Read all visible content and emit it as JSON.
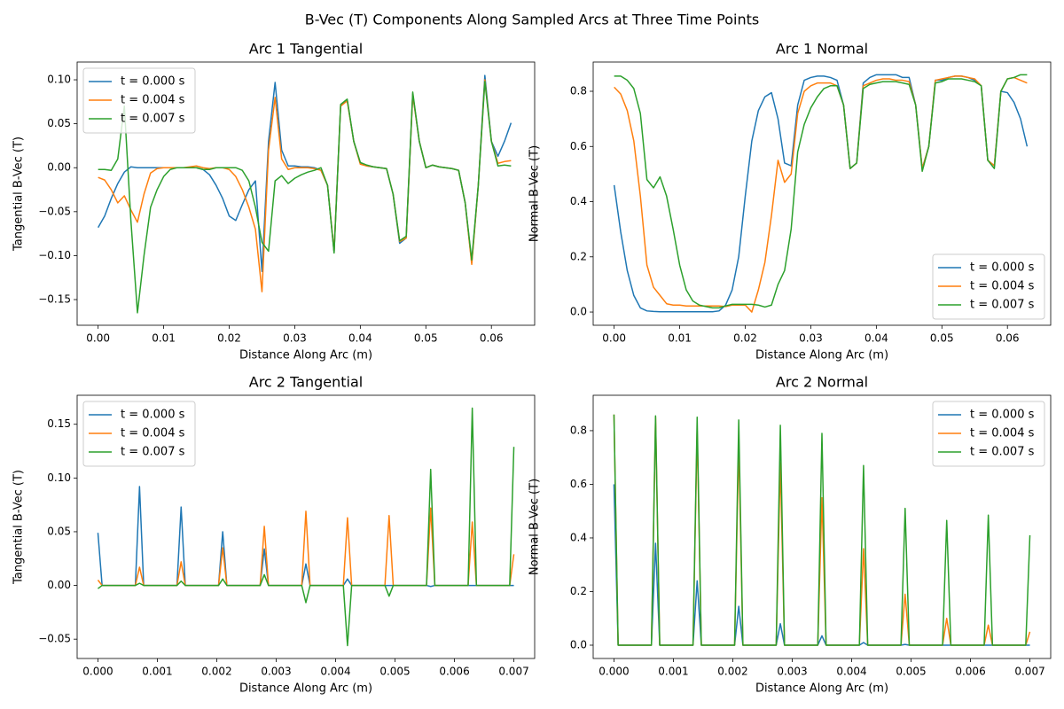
{
  "title": "B-Vec (T) Components Along Sampled Arcs at Three Time Points",
  "chart_data": [
    {
      "type": "line",
      "title": "Arc 1 Tangential",
      "xlabel": "Distance Along Arc (m)",
      "ylabel": "Tangential B-Vec (T)",
      "legend": "upper left",
      "x": [
        0,
        0.001,
        0.002,
        0.003,
        0.004,
        0.005,
        0.006,
        0.007,
        0.008,
        0.009,
        0.01,
        0.011,
        0.012,
        0.013,
        0.014,
        0.015,
        0.016,
        0.017,
        0.018,
        0.019,
        0.02,
        0.021,
        0.022,
        0.023,
        0.024,
        0.025,
        0.026,
        0.027,
        0.028,
        0.029,
        0.03,
        0.031,
        0.032,
        0.033,
        0.034,
        0.035,
        0.036,
        0.037,
        0.038,
        0.039,
        0.04,
        0.041,
        0.042,
        0.043,
        0.044,
        0.045,
        0.046,
        0.047,
        0.048,
        0.049,
        0.05,
        0.051,
        0.052,
        0.053,
        0.054,
        0.055,
        0.056,
        0.057,
        0.058,
        0.059,
        0.06,
        0.061,
        0.062,
        0.063
      ],
      "series": [
        {
          "name": "t = 0.000 s",
          "color": "#1f77b4",
          "values": [
            -0.068,
            -0.055,
            -0.035,
            -0.018,
            -0.005,
            0.001,
            0,
            0,
            0,
            0,
            0,
            0,
            0,
            0,
            0,
            0,
            -0.002,
            -0.008,
            -0.02,
            -0.035,
            -0.055,
            -0.06,
            -0.042,
            -0.025,
            -0.015,
            -0.118,
            0.03,
            0.097,
            0.02,
            0.002,
            0.002,
            0.001,
            0.001,
            0,
            -0.003,
            -0.02,
            -0.096,
            0.07,
            0.077,
            0.03,
            0.005,
            0.002,
            0.001,
            0,
            -0.001,
            -0.03,
            -0.086,
            -0.08,
            0.084,
            0.03,
            0,
            0.003,
            0.001,
            0,
            -0.001,
            -0.003,
            -0.04,
            -0.108,
            -0.02,
            0.105,
            0.03,
            0.013,
            0.03,
            0.051
          ]
        },
        {
          "name": "t = 0.004 s",
          "color": "#ff7f0e",
          "values": [
            -0.011,
            -0.014,
            -0.025,
            -0.04,
            -0.032,
            -0.048,
            -0.062,
            -0.03,
            -0.006,
            -0.001,
            0,
            0,
            0,
            0,
            0.001,
            0.002,
            0,
            -0.001,
            0,
            0,
            -0.002,
            -0.01,
            -0.025,
            -0.045,
            -0.07,
            -0.141,
            0.02,
            0.08,
            0.01,
            -0.002,
            0,
            0,
            0,
            -0.001,
            -0.003,
            -0.02,
            -0.095,
            0.07,
            0.076,
            0.03,
            0.004,
            0.002,
            0.001,
            0,
            -0.001,
            -0.03,
            -0.084,
            -0.08,
            0.083,
            0.03,
            0,
            0.003,
            0.001,
            0,
            -0.001,
            -0.003,
            -0.04,
            -0.11,
            -0.02,
            0.1,
            0.03,
            0.005,
            0.007,
            0.008
          ]
        },
        {
          "name": "t = 0.007 s",
          "color": "#2ca02c",
          "values": [
            -0.002,
            -0.002,
            -0.003,
            0.01,
            0.07,
            -0.06,
            -0.165,
            -0.1,
            -0.045,
            -0.025,
            -0.01,
            -0.002,
            0,
            0,
            0,
            0,
            -0.002,
            -0.002,
            0,
            0,
            0,
            0,
            -0.003,
            -0.015,
            -0.045,
            -0.085,
            -0.095,
            -0.015,
            -0.009,
            -0.018,
            -0.012,
            -0.008,
            -0.005,
            -0.003,
            0,
            -0.02,
            -0.097,
            0.072,
            0.078,
            0.03,
            0.006,
            0.003,
            0.001,
            0,
            -0.001,
            -0.03,
            -0.083,
            -0.078,
            0.086,
            0.03,
            0,
            0.003,
            0.001,
            0,
            -0.001,
            -0.003,
            -0.04,
            -0.105,
            -0.02,
            0.098,
            0.03,
            0.002,
            0.003,
            0.002
          ]
        }
      ],
      "xlim": [
        -0.0032,
        0.0666
      ],
      "ylim": [
        -0.1792,
        0.1202
      ],
      "xticks": [
        {
          "value": 0,
          "label": "0.00"
        },
        {
          "value": 0.01,
          "label": "0.01"
        },
        {
          "value": 0.02,
          "label": "0.02"
        },
        {
          "value": 0.03,
          "label": "0.03"
        },
        {
          "value": 0.04,
          "label": "0.04"
        },
        {
          "value": 0.05,
          "label": "0.05"
        },
        {
          "value": 0.06,
          "label": "0.06"
        }
      ],
      "yticks": [
        {
          "value": -0.15,
          "label": "−0.15"
        },
        {
          "value": -0.1,
          "label": "−0.10"
        },
        {
          "value": -0.05,
          "label": "−0.05"
        },
        {
          "value": 0,
          "label": "0.00"
        },
        {
          "value": 0.05,
          "label": "0.05"
        },
        {
          "value": 0.1,
          "label": "0.10"
        }
      ]
    },
    {
      "type": "line",
      "title": "Arc 1 Normal",
      "xlabel": "Distance Along Arc (m)",
      "ylabel": "Normal B-Vec (T)",
      "legend": "lower right",
      "x": [
        0,
        0.001,
        0.002,
        0.003,
        0.004,
        0.005,
        0.006,
        0.007,
        0.008,
        0.009,
        0.01,
        0.011,
        0.012,
        0.013,
        0.014,
        0.015,
        0.016,
        0.017,
        0.018,
        0.019,
        0.02,
        0.021,
        0.022,
        0.023,
        0.024,
        0.025,
        0.026,
        0.027,
        0.028,
        0.029,
        0.03,
        0.031,
        0.032,
        0.033,
        0.034,
        0.035,
        0.036,
        0.037,
        0.038,
        0.039,
        0.04,
        0.041,
        0.042,
        0.043,
        0.044,
        0.045,
        0.046,
        0.047,
        0.048,
        0.049,
        0.05,
        0.051,
        0.052,
        0.053,
        0.054,
        0.055,
        0.056,
        0.057,
        0.058,
        0.059,
        0.06,
        0.061,
        0.062,
        0.063
      ],
      "series": [
        {
          "name": "t = 0.000 s",
          "color": "#1f77b4",
          "values": [
            0.46,
            0.29,
            0.15,
            0.06,
            0.015,
            0.004,
            0.002,
            0.001,
            0.001,
            0.001,
            0.001,
            0.001,
            0.001,
            0.001,
            0.001,
            0.001,
            0.004,
            0.025,
            0.08,
            0.2,
            0.42,
            0.62,
            0.73,
            0.78,
            0.795,
            0.7,
            0.54,
            0.53,
            0.75,
            0.84,
            0.85,
            0.855,
            0.855,
            0.85,
            0.84,
            0.75,
            0.52,
            0.54,
            0.83,
            0.85,
            0.86,
            0.86,
            0.86,
            0.86,
            0.85,
            0.85,
            0.75,
            0.52,
            0.6,
            0.84,
            0.84,
            0.85,
            0.855,
            0.855,
            0.85,
            0.84,
            0.82,
            0.55,
            0.53,
            0.8,
            0.795,
            0.76,
            0.7,
            0.6
          ]
        },
        {
          "name": "t = 0.004 s",
          "color": "#ff7f0e",
          "values": [
            0.815,
            0.79,
            0.73,
            0.62,
            0.42,
            0.17,
            0.09,
            0.06,
            0.03,
            0.025,
            0.025,
            0.022,
            0.022,
            0.022,
            0.022,
            0.022,
            0.022,
            0.02,
            0.025,
            0.025,
            0.025,
            0,
            0.08,
            0.18,
            0.35,
            0.55,
            0.47,
            0.5,
            0.72,
            0.8,
            0.82,
            0.83,
            0.83,
            0.83,
            0.82,
            0.75,
            0.52,
            0.54,
            0.82,
            0.83,
            0.84,
            0.845,
            0.845,
            0.84,
            0.84,
            0.835,
            0.75,
            0.52,
            0.6,
            0.84,
            0.845,
            0.85,
            0.855,
            0.855,
            0.85,
            0.845,
            0.82,
            0.55,
            0.53,
            0.8,
            0.845,
            0.85,
            0.84,
            0.83
          ]
        },
        {
          "name": "t = 0.007 s",
          "color": "#2ca02c",
          "values": [
            0.855,
            0.855,
            0.84,
            0.81,
            0.72,
            0.48,
            0.45,
            0.49,
            0.42,
            0.3,
            0.17,
            0.08,
            0.04,
            0.025,
            0.02,
            0.015,
            0.015,
            0.022,
            0.028,
            0.028,
            0.028,
            0.028,
            0.025,
            0.018,
            0.025,
            0.1,
            0.15,
            0.3,
            0.58,
            0.68,
            0.74,
            0.78,
            0.81,
            0.82,
            0.82,
            0.75,
            0.52,
            0.54,
            0.81,
            0.825,
            0.83,
            0.835,
            0.835,
            0.835,
            0.83,
            0.825,
            0.75,
            0.51,
            0.6,
            0.83,
            0.835,
            0.845,
            0.845,
            0.845,
            0.84,
            0.835,
            0.82,
            0.55,
            0.52,
            0.8,
            0.845,
            0.85,
            0.86,
            0.86
          ]
        }
      ],
      "xlim": [
        -0.0032,
        0.0666
      ],
      "ylim": [
        -0.048,
        0.906
      ],
      "xticks": [
        {
          "value": 0,
          "label": "0.00"
        },
        {
          "value": 0.01,
          "label": "0.01"
        },
        {
          "value": 0.02,
          "label": "0.02"
        },
        {
          "value": 0.03,
          "label": "0.03"
        },
        {
          "value": 0.04,
          "label": "0.04"
        },
        {
          "value": 0.05,
          "label": "0.05"
        },
        {
          "value": 0.06,
          "label": "0.06"
        }
      ],
      "yticks": [
        {
          "value": 0,
          "label": "0.0"
        },
        0.2,
        0.4,
        0.6,
        0.8
      ]
    },
    {
      "type": "line",
      "title": "Arc 2 Tangential",
      "xlabel": "Distance Along Arc (m)",
      "ylabel": "Tangential B-Vec (T)",
      "legend": "upper left",
      "x": [
        0,
        7e-05,
        0.00063,
        0.0007,
        0.00077,
        0.00133,
        0.0014,
        0.00147,
        0.00203,
        0.0021,
        0.00217,
        0.00273,
        0.0028,
        0.00287,
        0.00343,
        0.0035,
        0.00357,
        0.00413,
        0.0042,
        0.00427,
        0.00483,
        0.0049,
        0.00497,
        0.00553,
        0.0056,
        0.00567,
        0.00623,
        0.0063,
        0.00637,
        0.00693,
        0.007
      ],
      "series": [
        {
          "name": "t = 0.000 s",
          "color": "#1f77b4",
          "values": [
            0.049,
            0,
            0,
            0.092,
            0,
            0,
            0.073,
            0,
            0,
            0.05,
            0,
            0,
            0.034,
            0,
            0,
            0.02,
            0,
            0,
            0.006,
            0,
            0,
            0,
            0,
            0,
            -0.001,
            0,
            0,
            0,
            0,
            0,
            0
          ]
        },
        {
          "name": "t = 0.004 s",
          "color": "#ff7f0e",
          "values": [
            0.005,
            0,
            0,
            0.017,
            0,
            0,
            0.022,
            0,
            0,
            0.035,
            0,
            0,
            0.055,
            0,
            0,
            0.069,
            0,
            0,
            0.063,
            0,
            0,
            0.065,
            0,
            0,
            0.072,
            0,
            0,
            0.059,
            0,
            0,
            0.029
          ]
        },
        {
          "name": "t = 0.007 s",
          "color": "#2ca02c",
          "values": [
            -0.003,
            0,
            0,
            0.002,
            0,
            0,
            0.004,
            0,
            0,
            0.006,
            0,
            0,
            0.01,
            0,
            0,
            -0.016,
            0,
            0,
            -0.056,
            0,
            0,
            -0.01,
            0,
            0,
            0.108,
            0,
            0,
            0.165,
            0,
            0,
            0.129
          ]
        }
      ],
      "xlim": [
        -0.00035,
        0.00735
      ],
      "ylim": [
        -0.068,
        0.177
      ],
      "xticks": [
        {
          "value": 0,
          "label": "0.000"
        },
        {
          "value": 0.001,
          "label": "0.001"
        },
        {
          "value": 0.002,
          "label": "0.002"
        },
        {
          "value": 0.003,
          "label": "0.003"
        },
        {
          "value": 0.004,
          "label": "0.004"
        },
        {
          "value": 0.005,
          "label": "0.005"
        },
        {
          "value": 0.006,
          "label": "0.006"
        },
        {
          "value": 0.007,
          "label": "0.007"
        }
      ],
      "yticks": [
        {
          "value": -0.05,
          "label": "−0.05"
        },
        {
          "value": 0,
          "label": "0.00"
        },
        {
          "value": 0.05,
          "label": "0.05"
        },
        {
          "value": 0.1,
          "label": "0.10"
        },
        {
          "value": 0.15,
          "label": "0.15"
        }
      ]
    },
    {
      "type": "line",
      "title": "Arc 2 Normal",
      "xlabel": "Distance Along Arc (m)",
      "ylabel": "Normal B-Vec (T)",
      "legend": "upper right",
      "x": [
        0,
        7e-05,
        0.00063,
        0.0007,
        0.00077,
        0.00133,
        0.0014,
        0.00147,
        0.00203,
        0.0021,
        0.00217,
        0.00273,
        0.0028,
        0.00287,
        0.00343,
        0.0035,
        0.00357,
        0.00413,
        0.0042,
        0.00427,
        0.00483,
        0.0049,
        0.00497,
        0.00553,
        0.0056,
        0.00567,
        0.00623,
        0.0063,
        0.00637,
        0.00693,
        0.007
      ],
      "series": [
        {
          "name": "t = 0.000 s",
          "color": "#1f77b4",
          "values": [
            0.6,
            0,
            0,
            0.38,
            0,
            0,
            0.24,
            0,
            0,
            0.145,
            0,
            0,
            0.08,
            0,
            0,
            0.035,
            0,
            0,
            0.01,
            0,
            0,
            0.003,
            0,
            0,
            0,
            0,
            0,
            0,
            0,
            0,
            0
          ]
        },
        {
          "name": "t = 0.004 s",
          "color": "#ff7f0e",
          "values": [
            0.86,
            0,
            0,
            0.85,
            0,
            0,
            0.8,
            0,
            0,
            0.75,
            0,
            0,
            0.68,
            0,
            0,
            0.55,
            0,
            0,
            0.36,
            0,
            0,
            0.19,
            0,
            0,
            0.1,
            0,
            0,
            0.075,
            0,
            0,
            0.05
          ]
        },
        {
          "name": "t = 0.007 s",
          "color": "#2ca02c",
          "values": [
            0.86,
            0,
            0,
            0.855,
            0,
            0,
            0.85,
            0,
            0,
            0.84,
            0,
            0,
            0.82,
            0,
            0,
            0.79,
            0,
            0,
            0.67,
            0,
            0,
            0.51,
            0,
            0,
            0.465,
            0,
            0,
            0.485,
            0,
            0,
            0.41
          ]
        }
      ],
      "xlim": [
        -0.00035,
        0.00735
      ],
      "ylim": [
        -0.0496,
        0.932
      ],
      "xticks": [
        {
          "value": 0,
          "label": "0.000"
        },
        {
          "value": 0.001,
          "label": "0.001"
        },
        {
          "value": 0.002,
          "label": "0.002"
        },
        {
          "value": 0.003,
          "label": "0.003"
        },
        {
          "value": 0.004,
          "label": "0.004"
        },
        {
          "value": 0.005,
          "label": "0.005"
        },
        {
          "value": 0.006,
          "label": "0.006"
        },
        {
          "value": 0.007,
          "label": "0.007"
        }
      ],
      "yticks": [
        {
          "value": 0,
          "label": "0.0"
        },
        0.2,
        0.4,
        0.6,
        0.8
      ]
    }
  ]
}
